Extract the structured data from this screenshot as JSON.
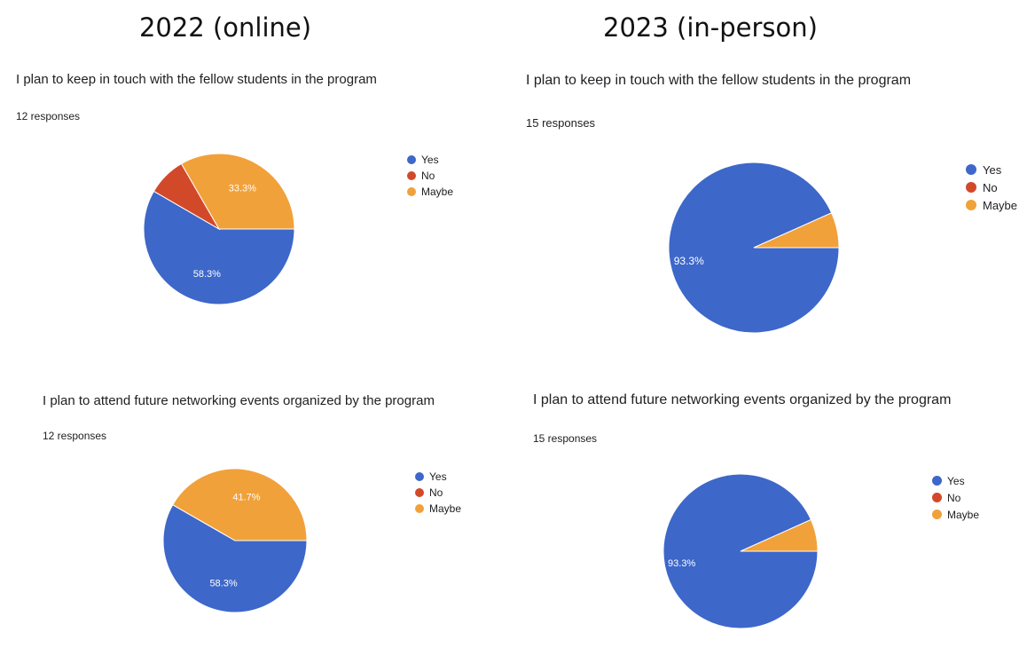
{
  "headers": {
    "left": "2022 (online)",
    "right": "2023 (in-person)"
  },
  "colors": {
    "yes": "#3d67c9",
    "no": "#d2492a",
    "maybe": "#f1a13a"
  },
  "chart_data": [
    {
      "type": "pie",
      "title": "I plan to keep in touch with the fellow students in the program",
      "subtitle": "12 responses",
      "categories": [
        "Yes",
        "No",
        "Maybe"
      ],
      "values": [
        58.3,
        8.3,
        33.3
      ],
      "data_labels": [
        "58.3%",
        "",
        "33.3%"
      ],
      "legend_position": "right"
    },
    {
      "type": "pie",
      "title": "I plan to keep in touch with the fellow students in the program",
      "subtitle": "15 responses",
      "categories": [
        "Yes",
        "No",
        "Maybe"
      ],
      "values": [
        93.3,
        0,
        6.7
      ],
      "data_labels": [
        "93.3%",
        "",
        ""
      ],
      "legend_position": "right"
    },
    {
      "type": "pie",
      "title": "I plan to attend future networking events organized by the program",
      "subtitle": "12 responses",
      "categories": [
        "Yes",
        "No",
        "Maybe"
      ],
      "values": [
        58.3,
        0,
        41.7
      ],
      "data_labels": [
        "58.3%",
        "",
        "41.7%"
      ],
      "legend_position": "right"
    },
    {
      "type": "pie",
      "title": "I plan to attend future networking events organized by the program",
      "subtitle": "15 responses",
      "categories": [
        "Yes",
        "No",
        "Maybe"
      ],
      "values": [
        93.3,
        0,
        6.7
      ],
      "data_labels": [
        "93.3%",
        "",
        ""
      ],
      "legend_position": "right"
    }
  ]
}
